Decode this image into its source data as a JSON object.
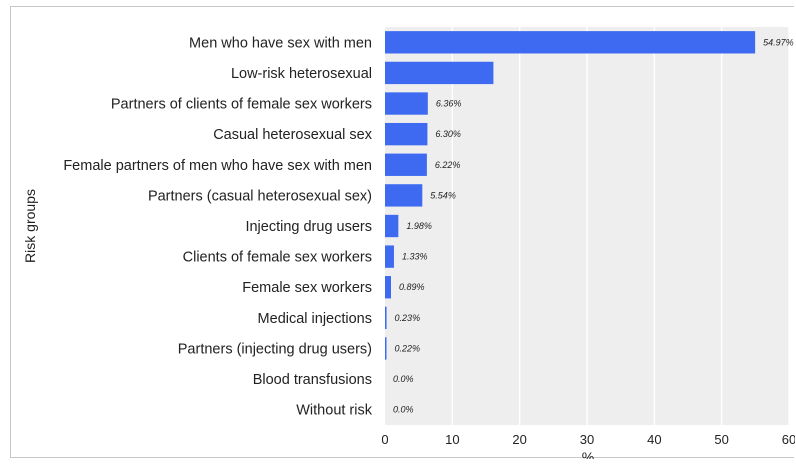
{
  "chart_data": {
    "type": "bar",
    "orientation": "horizontal",
    "title": "",
    "xlabel": "%",
    "ylabel": "Risk groups",
    "xlim": [
      0,
      60
    ],
    "xticks": [
      "0",
      "10",
      "20",
      "30",
      "40",
      "50",
      "60"
    ],
    "grid": true,
    "legend": "none",
    "bar_color": "#3d6af0",
    "plot_background": "#eeeeee",
    "categories": [
      "Men who have sex with men",
      "Low-risk heterosexual",
      "Partners of clients of female sex workers",
      "Casual heterosexual sex",
      "Female partners of men who have sex with men",
      "Partners (casual heterosexual sex)",
      "Injecting drug users",
      "Clients of female sex workers",
      "Female sex workers",
      "Medical injections",
      "Partners (injecting drug users)",
      "Blood transfusions",
      "Without risk"
    ],
    "values": [
      54.97,
      16.1,
      6.36,
      6.3,
      6.22,
      5.54,
      1.98,
      1.33,
      0.89,
      0.23,
      0.22,
      0.0,
      0.0
    ],
    "data_labels": [
      "54.97%",
      "",
      "6.36%",
      "6.30%",
      "6.22%",
      "5.54%",
      "1.98%",
      "1.33%",
      "0.89%",
      "0.23%",
      "0.22%",
      "0.0%",
      "0.0%"
    ]
  }
}
